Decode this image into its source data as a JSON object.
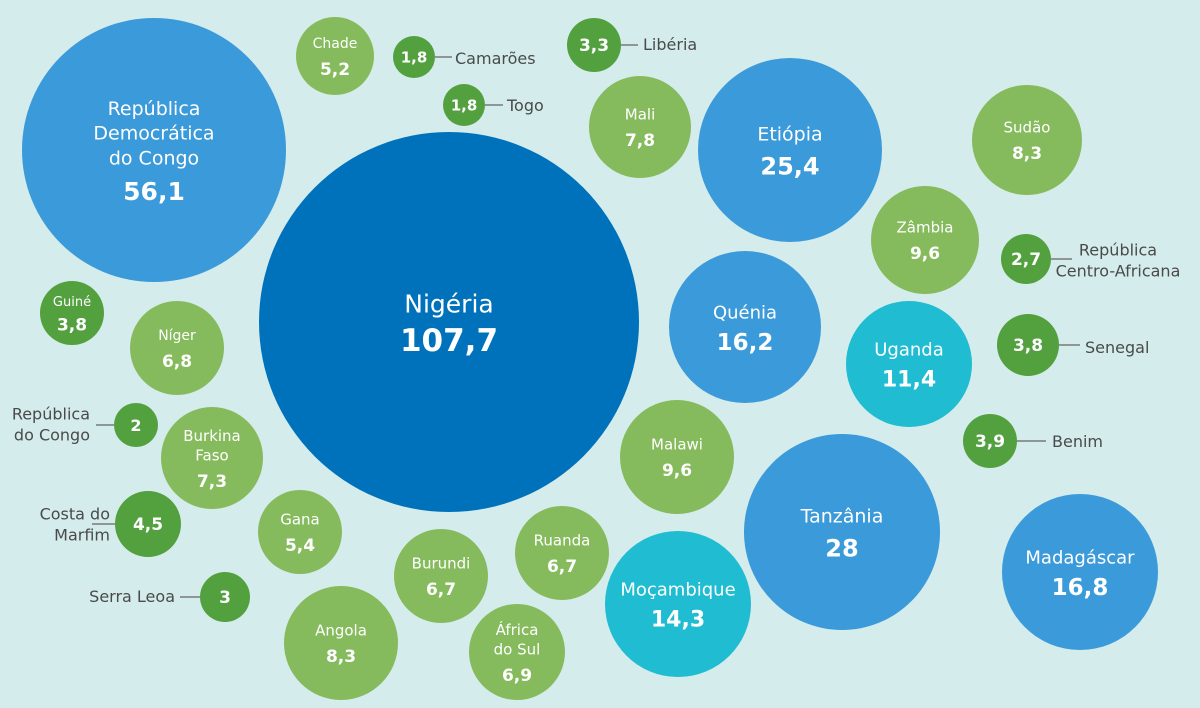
{
  "colors": {
    "background": "#d5ecec",
    "blue-dark": "#0072bb",
    "blue-mid": "#3b9ad9",
    "cyan": "#1fbcd2",
    "green-light": "#85bb5c",
    "green-dark": "#53a03f"
  },
  "chart_data": {
    "type": "bubble",
    "points": [
      {
        "name": "Nigéria",
        "value": "107,7",
        "color": "blue-dark"
      },
      {
        "name": "República Democrática do Congo",
        "value": "56,1",
        "color": "blue-mid"
      },
      {
        "name": "Tanzânia",
        "value": "28",
        "color": "blue-mid"
      },
      {
        "name": "Etiópia",
        "value": "25,4",
        "color": "blue-mid"
      },
      {
        "name": "Madagáscar",
        "value": "16,8",
        "color": "blue-mid"
      },
      {
        "name": "Quénia",
        "value": "16,2",
        "color": "blue-mid"
      },
      {
        "name": "Moçambique",
        "value": "14,3",
        "color": "cyan"
      },
      {
        "name": "Uganda",
        "value": "11,4",
        "color": "cyan"
      },
      {
        "name": "Zâmbia",
        "value": "9,6",
        "color": "green-light"
      },
      {
        "name": "Malawi",
        "value": "9,6",
        "color": "green-light"
      },
      {
        "name": "Sudão",
        "value": "8,3",
        "color": "green-light"
      },
      {
        "name": "Angola",
        "value": "8,3",
        "color": "green-light"
      },
      {
        "name": "Mali",
        "value": "7,8",
        "color": "green-light"
      },
      {
        "name": "Burkina Faso",
        "value": "7,3",
        "color": "green-light"
      },
      {
        "name": "África do Sul",
        "value": "6,9",
        "color": "green-light"
      },
      {
        "name": "Níger",
        "value": "6,8",
        "color": "green-light"
      },
      {
        "name": "Burundi",
        "value": "6,7",
        "color": "green-light"
      },
      {
        "name": "Ruanda",
        "value": "6,7",
        "color": "green-light"
      },
      {
        "name": "Gana",
        "value": "5,4",
        "color": "green-light"
      },
      {
        "name": "Chade",
        "value": "5,2",
        "color": "green-light"
      },
      {
        "name": "Costa do Marfim",
        "value": "4,5",
        "color": "green-dark"
      },
      {
        "name": "Benim",
        "value": "3,9",
        "color": "green-dark"
      },
      {
        "name": "Guiné",
        "value": "3,8",
        "color": "green-dark"
      },
      {
        "name": "Senegal",
        "value": "3,8",
        "color": "green-dark"
      },
      {
        "name": "Libéria",
        "value": "3,3",
        "color": "green-dark"
      },
      {
        "name": "Serra Leoa",
        "value": "3",
        "color": "green-dark"
      },
      {
        "name": "República Centro-Africana",
        "value": "2,7",
        "color": "green-dark"
      },
      {
        "name": "República do Congo",
        "value": "2",
        "color": "green-dark"
      },
      {
        "name": "Camarões",
        "value": "1,8",
        "color": "green-dark"
      },
      {
        "name": "Togo",
        "value": "1,8",
        "color": "green-dark"
      }
    ]
  }
}
